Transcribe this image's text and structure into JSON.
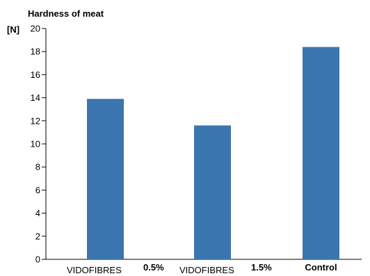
{
  "chart_data": {
    "type": "bar",
    "title": "Hardness of meat",
    "ylabel": "[N]",
    "xlabel": "",
    "ylim": [
      0,
      20
    ],
    "yticks": [
      0,
      2,
      4,
      6,
      8,
      10,
      12,
      14,
      16,
      18,
      20
    ],
    "category_labels": [
      {
        "name": "VIDOFIBRES",
        "suffix": "0.5%"
      },
      {
        "name": "VIDOFIBRES",
        "suffix": "1.5%"
      },
      {
        "name": "",
        "suffix": "Control"
      }
    ],
    "categories": [
      "VIDOFIBRES 0.5%",
      "VIDOFIBRES 1.5%",
      "Control"
    ],
    "values": [
      13.9,
      11.6,
      18.4
    ],
    "bar_color": "#3B75AF",
    "grid": false,
    "legend": "none"
  }
}
